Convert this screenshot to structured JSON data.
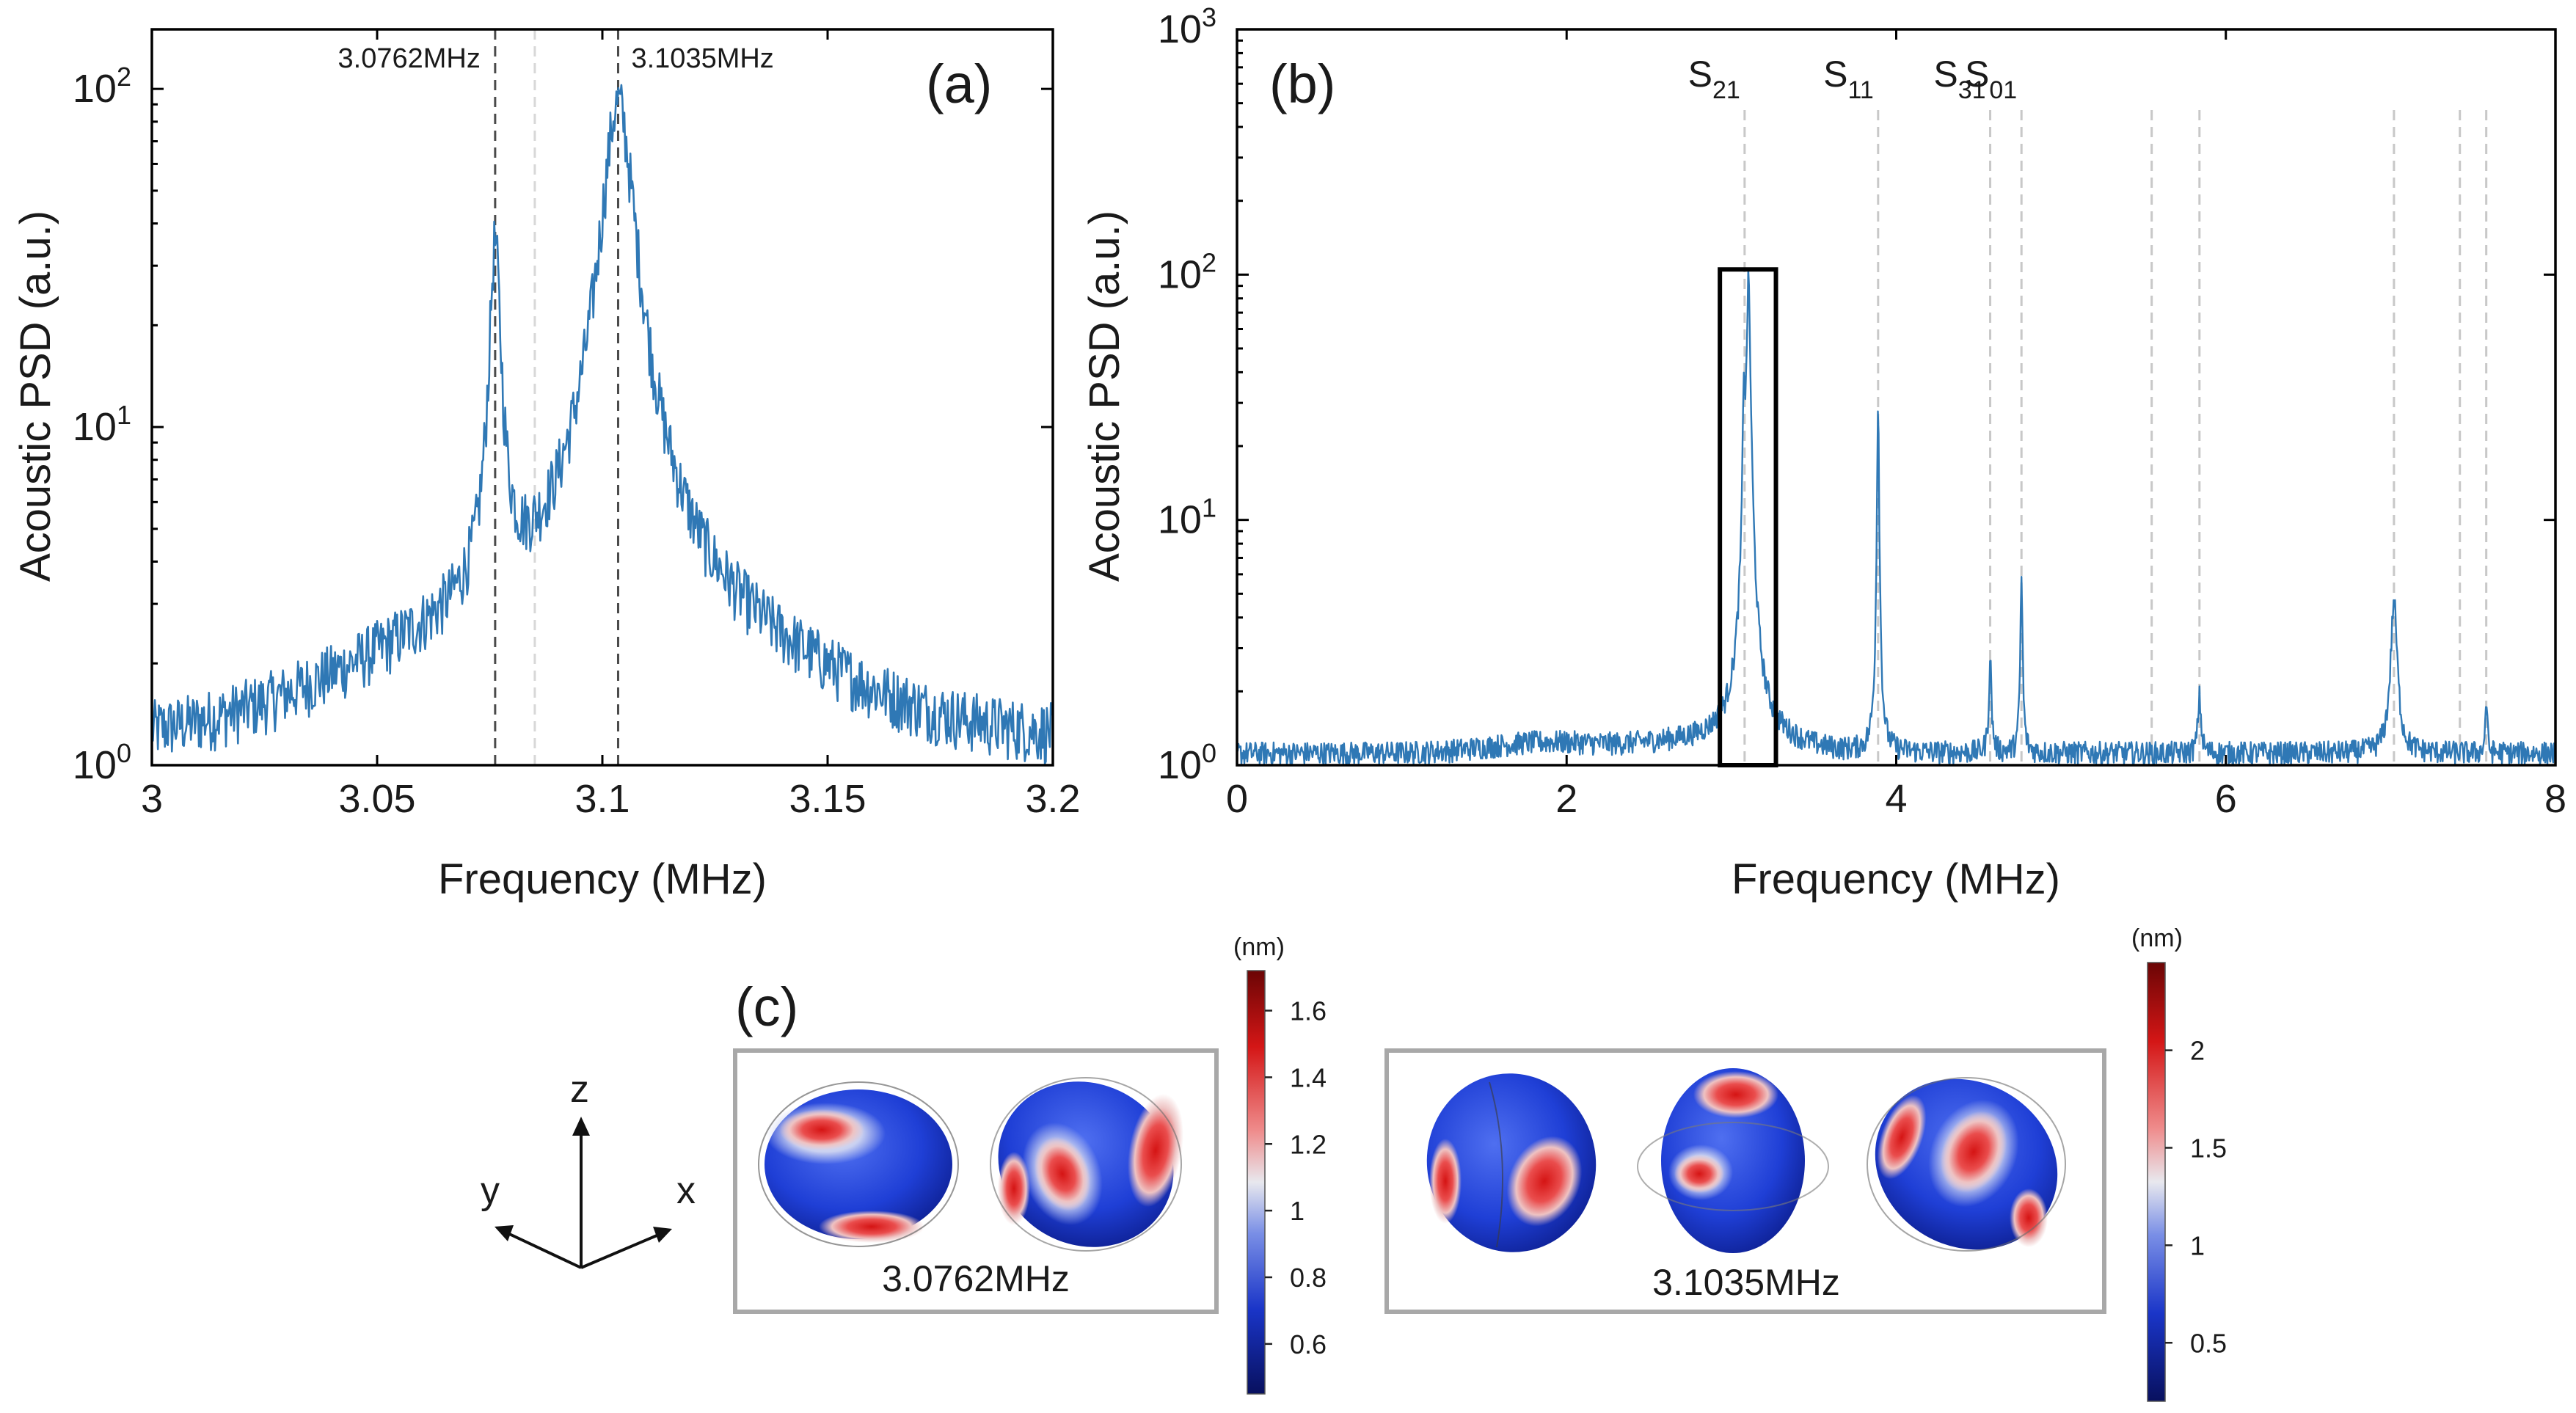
{
  "chart_data": [
    {
      "id": "a",
      "type": "line",
      "panel_label": "(a)",
      "xlabel": "Frequency (MHz)",
      "ylabel": "Acoustic PSD (a.u.)",
      "xlim": [
        3.0,
        3.2
      ],
      "ylim": [
        1,
        150
      ],
      "yscale": "log",
      "x_ticks": [
        3.0,
        3.05,
        3.1,
        3.15,
        3.2
      ],
      "x_tick_labels": [
        "3",
        "3.05",
        "3.1",
        "3.15",
        "3.2"
      ],
      "y_ticks": [
        1,
        10,
        100
      ],
      "y_tick_labels": [
        {
          "base": "10",
          "exp": "0"
        },
        {
          "base": "10",
          "exp": "1"
        },
        {
          "base": "10",
          "exp": "2"
        }
      ],
      "series_color": "#2f78b5",
      "peaks": [
        {
          "freq": 3.0762,
          "amp": 33,
          "width": 0.0011
        },
        {
          "freq": 3.1035,
          "amp": 90,
          "width": 0.0032
        }
      ],
      "baseline": 1.15,
      "markers": [
        {
          "x": 3.0762,
          "label": "3.0762MHz",
          "style": "dark"
        },
        {
          "x": 3.085,
          "label": "",
          "style": "light"
        },
        {
          "x": 3.1035,
          "label": "3.1035MHz",
          "style": "dark"
        }
      ]
    },
    {
      "id": "b",
      "type": "line",
      "panel_label": "(b)",
      "xlabel": "Frequency (MHz)",
      "ylabel": "Acoustic PSD (a.u.)",
      "xlim": [
        0,
        8
      ],
      "ylim": [
        1,
        1000
      ],
      "yscale": "log",
      "x_ticks": [
        0,
        2,
        4,
        6,
        8
      ],
      "x_tick_labels": [
        "0",
        "2",
        "4",
        "6",
        "8"
      ],
      "y_ticks": [
        1,
        10,
        100,
        1000
      ],
      "y_tick_labels": [
        {
          "base": "10",
          "exp": "0"
        },
        {
          "base": "10",
          "exp": "1"
        },
        {
          "base": "10",
          "exp": "2"
        },
        {
          "base": "10",
          "exp": "3"
        }
      ],
      "series_color": "#2f78b5",
      "peaks": [
        {
          "freq": 3.0762,
          "amp": 33,
          "width": 0.006
        },
        {
          "freq": 3.1035,
          "amp": 95,
          "width": 0.01
        },
        {
          "freq": 3.89,
          "amp": 32,
          "width": 0.005
        },
        {
          "freq": 4.57,
          "amp": 2.7,
          "width": 0.008
        },
        {
          "freq": 4.76,
          "amp": 5.8,
          "width": 0.006
        },
        {
          "freq": 5.84,
          "amp": 1.9,
          "width": 0.01
        },
        {
          "freq": 7.02,
          "amp": 4.7,
          "width": 0.018
        },
        {
          "freq": 7.58,
          "amp": 1.9,
          "width": 0.006
        }
      ],
      "baseline": 1.12,
      "mode_lines": [
        {
          "x": 3.08,
          "label": "S",
          "sub": "21"
        },
        {
          "x": 3.89,
          "label": "S",
          "sub": "11"
        },
        {
          "x": 4.57,
          "label": "S",
          "sub": "31"
        },
        {
          "x": 4.76,
          "label": "S",
          "sub": "01"
        },
        {
          "x": 5.55,
          "label": "",
          "sub": ""
        },
        {
          "x": 5.84,
          "label": "",
          "sub": ""
        },
        {
          "x": 7.02,
          "label": "",
          "sub": ""
        },
        {
          "x": 7.42,
          "label": "",
          "sub": ""
        },
        {
          "x": 7.58,
          "label": "",
          "sub": ""
        }
      ],
      "highlight_box": {
        "x0": 2.93,
        "x1": 3.27,
        "y0": 1,
        "y1": 105
      }
    },
    {
      "id": "c",
      "type": "other",
      "panel_label": "(c)",
      "axis_triad": {
        "z": "z",
        "y": "y",
        "x": "x"
      },
      "groups": [
        {
          "freq_label": "3.0762MHz",
          "colorbar": {
            "unit": "(nm)",
            "range": [
              0.45,
              1.72
            ],
            "ticks": [
              "0.6",
              "0.8",
              "1",
              "1.2",
              "1.4",
              "1.6"
            ]
          }
        },
        {
          "freq_label": "3.1035MHz",
          "colorbar": {
            "unit": "(nm)",
            "range": [
              0.2,
              2.45
            ],
            "ticks": [
              "0.5",
              "1",
              "1.5",
              "2"
            ]
          }
        }
      ]
    }
  ]
}
